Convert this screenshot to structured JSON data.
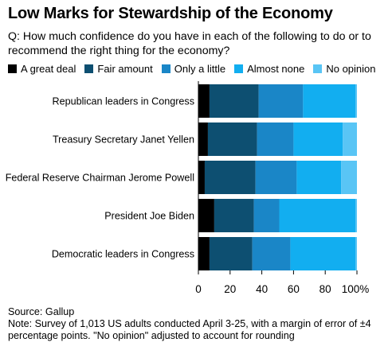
{
  "title": "Low Marks for Stewardship of the Economy",
  "subtitle": "Q: How much confidence do you have in each of the following to do or to recommend the right thing for the economy?",
  "source": "Source: Gallup",
  "note": "Note: Survey of 1,013 US adults conducted April 3-25, with a margin of error of ±4 percentage points. \"No opinion\" adjusted to account for rounding",
  "chart_data": {
    "type": "bar",
    "orientation": "horizontal",
    "stacked": true,
    "categories": [
      "Republican leaders in Congress",
      "Treasury Secretary Janet Yellen",
      "Federal Reserve Chairman Jerome Powell",
      "President Joe Biden",
      "Democratic leaders in Congress"
    ],
    "series": [
      {
        "name": "A great deal",
        "color": "#000000",
        "values": [
          7,
          6,
          4,
          10,
          7
        ]
      },
      {
        "name": "Fair amount",
        "color": "#0d4f71",
        "values": [
          31,
          31,
          32,
          25,
          27
        ]
      },
      {
        "name": "Only a little",
        "color": "#1a86c7",
        "values": [
          28,
          23,
          26,
          16,
          24
        ]
      },
      {
        "name": "Almost none",
        "color": "#12aef0",
        "values": [
          33,
          31,
          28,
          48,
          41
        ]
      },
      {
        "name": "No opinion",
        "color": "#59c5f5",
        "values": [
          1,
          9,
          10,
          1,
          1
        ]
      }
    ],
    "xlim": [
      0,
      100
    ],
    "xticks": [
      0,
      20,
      40,
      60,
      80,
      100
    ],
    "xtick_labels": [
      "0",
      "20",
      "40",
      "60",
      "80",
      "100%"
    ],
    "grid": false,
    "legend_position": "top-left"
  }
}
